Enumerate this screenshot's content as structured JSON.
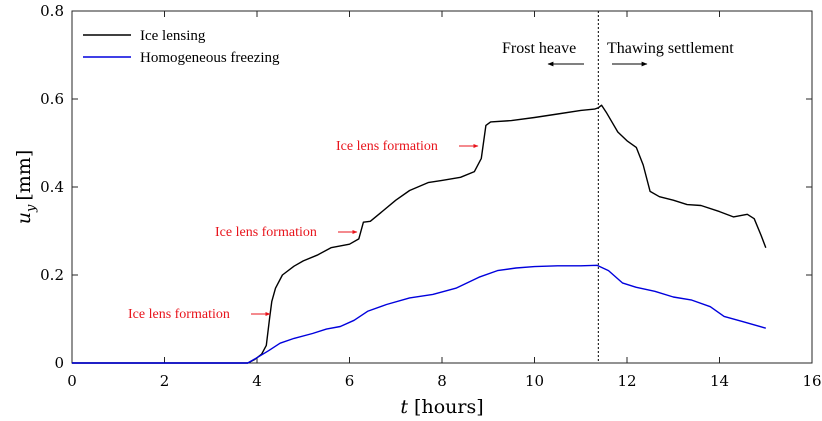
{
  "chart_data": {
    "type": "line",
    "xlabel_var": "t",
    "xlabel_unit": "[hours]",
    "ylabel_var": "u",
    "ylabel_sub": "y",
    "ylabel_unit": "[mm]",
    "xlim": [
      0,
      16
    ],
    "ylim": [
      0,
      0.8
    ],
    "x_ticks": [
      "0",
      "2",
      "4",
      "6",
      "8",
      "10",
      "12",
      "14",
      "16"
    ],
    "y_ticks": [
      "0",
      "0.2",
      "0.4",
      "0.6",
      "0.8"
    ],
    "grid": false,
    "legend_position": "top-left",
    "series": [
      {
        "name": "Ice lensing",
        "color": "#000000",
        "points": [
          [
            0,
            0
          ],
          [
            3.8,
            0
          ],
          [
            3.95,
            0.008
          ],
          [
            4.1,
            0.02
          ],
          [
            4.2,
            0.04
          ],
          [
            4.27,
            0.1
          ],
          [
            4.32,
            0.14
          ],
          [
            4.4,
            0.17
          ],
          [
            4.55,
            0.2
          ],
          [
            4.8,
            0.22
          ],
          [
            5.0,
            0.232
          ],
          [
            5.3,
            0.245
          ],
          [
            5.6,
            0.262
          ],
          [
            6.0,
            0.27
          ],
          [
            6.2,
            0.282
          ],
          [
            6.3,
            0.32
          ],
          [
            6.45,
            0.322
          ],
          [
            6.6,
            0.335
          ],
          [
            7.0,
            0.37
          ],
          [
            7.3,
            0.392
          ],
          [
            7.7,
            0.41
          ],
          [
            8.0,
            0.415
          ],
          [
            8.4,
            0.422
          ],
          [
            8.7,
            0.435
          ],
          [
            8.85,
            0.465
          ],
          [
            8.95,
            0.54
          ],
          [
            9.05,
            0.548
          ],
          [
            9.5,
            0.551
          ],
          [
            10.0,
            0.558
          ],
          [
            10.5,
            0.566
          ],
          [
            11.0,
            0.574
          ],
          [
            11.3,
            0.577
          ],
          [
            11.38,
            0.58
          ],
          [
            11.45,
            0.586
          ],
          [
            11.55,
            0.57
          ],
          [
            11.8,
            0.525
          ],
          [
            12.0,
            0.505
          ],
          [
            12.2,
            0.49
          ],
          [
            12.35,
            0.45
          ],
          [
            12.5,
            0.39
          ],
          [
            12.7,
            0.378
          ],
          [
            13.0,
            0.37
          ],
          [
            13.3,
            0.36
          ],
          [
            13.6,
            0.358
          ],
          [
            14.0,
            0.344
          ],
          [
            14.3,
            0.332
          ],
          [
            14.6,
            0.338
          ],
          [
            14.75,
            0.328
          ],
          [
            14.9,
            0.29
          ],
          [
            15.0,
            0.262
          ]
        ]
      },
      {
        "name": "Homogeneous freezing",
        "color": "#0000dd",
        "points": [
          [
            0,
            0
          ],
          [
            3.8,
            0
          ],
          [
            4.0,
            0.012
          ],
          [
            4.25,
            0.028
          ],
          [
            4.5,
            0.045
          ],
          [
            4.8,
            0.056
          ],
          [
            5.2,
            0.067
          ],
          [
            5.5,
            0.077
          ],
          [
            5.8,
            0.083
          ],
          [
            6.1,
            0.097
          ],
          [
            6.4,
            0.118
          ],
          [
            6.8,
            0.133
          ],
          [
            7.3,
            0.148
          ],
          [
            7.8,
            0.156
          ],
          [
            8.3,
            0.17
          ],
          [
            8.8,
            0.195
          ],
          [
            9.2,
            0.21
          ],
          [
            9.6,
            0.216
          ],
          [
            10.0,
            0.219
          ],
          [
            10.5,
            0.221
          ],
          [
            11.0,
            0.221
          ],
          [
            11.35,
            0.222
          ],
          [
            11.6,
            0.21
          ],
          [
            11.9,
            0.182
          ],
          [
            12.2,
            0.172
          ],
          [
            12.6,
            0.163
          ],
          [
            13.0,
            0.15
          ],
          [
            13.4,
            0.143
          ],
          [
            13.8,
            0.128
          ],
          [
            14.1,
            0.106
          ],
          [
            14.5,
            0.094
          ],
          [
            15.0,
            0.079
          ]
        ]
      }
    ],
    "vline_x": 11.38,
    "phase_left": "Frost heave",
    "phase_right": "Thawing settlement",
    "annotations": [
      {
        "text": "Ice lens formation",
        "arrow_to": [
          4.27,
          0.11
        ]
      },
      {
        "text": "Ice lens formation",
        "arrow_to": [
          6.3,
          0.3
        ]
      },
      {
        "text": "Ice lens formation",
        "arrow_to": [
          8.95,
          0.49
        ]
      }
    ]
  }
}
